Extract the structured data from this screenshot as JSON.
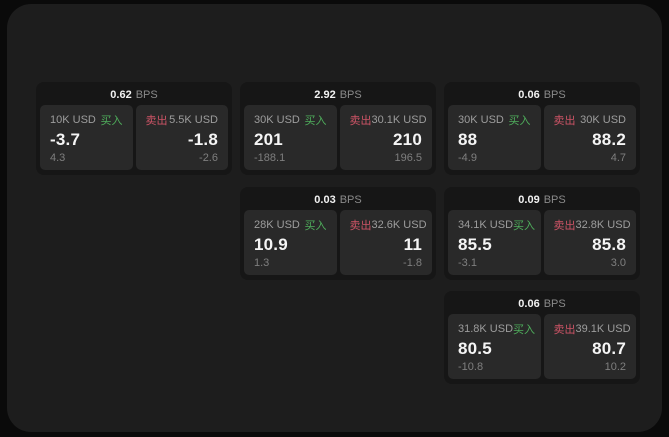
{
  "labels": {
    "bps": "BPS",
    "buy": "买入",
    "sell": "卖出"
  },
  "colors": {
    "page_bg": "#0a0a0a",
    "surface_bg": "#1d1d1d",
    "card_bg": "#161616",
    "panel_bg": "#292929",
    "buy_accent": "#4fae5c",
    "sell_accent": "#cd5466"
  },
  "cards": [
    {
      "bps": "0.62",
      "buy": {
        "amount": "10K USD",
        "value": "-3.7",
        "delta": "4.3"
      },
      "sell": {
        "amount": "5.5K USD",
        "value": "-1.8",
        "delta": "-2.6"
      }
    },
    {
      "bps": "2.92",
      "buy": {
        "amount": "30K USD",
        "value": "201",
        "delta": "-188.1"
      },
      "sell": {
        "amount": "30.1K USD",
        "value": "210",
        "delta": "196.5"
      }
    },
    {
      "bps": "0.06",
      "buy": {
        "amount": "30K USD",
        "value": "88",
        "delta": "-4.9"
      },
      "sell": {
        "amount": "30K USD",
        "value": "88.2",
        "delta": "4.7"
      }
    },
    {
      "bps": "0.03",
      "buy": {
        "amount": "28K USD",
        "value": "10.9",
        "delta": "1.3"
      },
      "sell": {
        "amount": "32.6K USD",
        "value": "11",
        "delta": "-1.8"
      }
    },
    {
      "bps": "0.09",
      "buy": {
        "amount": "34.1K USD",
        "value": "85.5",
        "delta": "-3.1"
      },
      "sell": {
        "amount": "32.8K USD",
        "value": "85.8",
        "delta": "3.0"
      }
    },
    {
      "bps": "0.06",
      "buy": {
        "amount": "31.8K USD",
        "value": "80.5",
        "delta": "-10.8"
      },
      "sell": {
        "amount": "39.1K USD",
        "value": "80.7",
        "delta": "10.2"
      }
    }
  ]
}
